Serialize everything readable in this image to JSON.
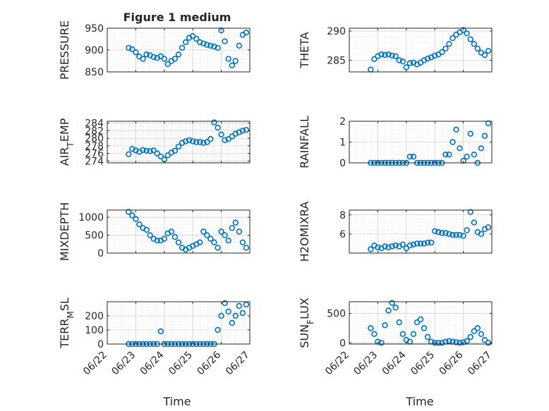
{
  "figure": {
    "title": "Figure 1 medium",
    "xlabel": "Time",
    "date_ticks": [
      "06/22",
      "06/23",
      "06/24",
      "06/25",
      "06/26",
      "06/27"
    ]
  },
  "colors": {
    "marker": "#0072BD",
    "axis": "#262626",
    "grid": "#d0d0d0",
    "background": "#ffffff"
  },
  "chart_data": [
    {
      "type": "scatter",
      "ylabel": "PRESSURE",
      "ylim": [
        850,
        950
      ],
      "yticks": [
        850,
        900,
        950
      ],
      "xlim": [
        "06/22",
        "06/27"
      ],
      "grid": true,
      "title": "Figure 1 medium",
      "x": [
        "06/22 18:00",
        "06/22 21:00",
        "06/23 00:00",
        "06/23 03:00",
        "06/23 06:00",
        "06/23 09:00",
        "06/23 12:00",
        "06/23 15:00",
        "06/23 18:00",
        "06/23 21:00",
        "06/24 00:00",
        "06/24 03:00",
        "06/24 06:00",
        "06/24 09:00",
        "06/24 12:00",
        "06/24 15:00",
        "06/24 18:00",
        "06/24 21:00",
        "06/25 00:00",
        "06/25 03:00",
        "06/25 06:00",
        "06/25 09:00",
        "06/25 12:00",
        "06/25 15:00",
        "06/25 18:00",
        "06/25 21:00",
        "06/26 00:00",
        "06/26 03:00",
        "06/26 06:00",
        "06/26 09:00",
        "06/26 12:00",
        "06/26 15:00",
        "06/26 18:00",
        "06/26 21:00"
      ],
      "y": [
        905,
        902,
        895,
        885,
        880,
        890,
        888,
        884,
        882,
        886,
        880,
        868,
        875,
        880,
        890,
        905,
        918,
        928,
        932,
        926,
        918,
        915,
        912,
        910,
        908,
        905,
        945,
        920,
        880,
        865,
        875,
        910,
        935,
        940
      ]
    },
    {
      "type": "scatter",
      "ylabel": "THETA",
      "ylim": [
        283,
        290.5
      ],
      "yticks": [
        285,
        290
      ],
      "xlim": [
        "06/22",
        "06/27"
      ],
      "grid": true,
      "x": [
        "06/22 18:00",
        "06/22 21:00",
        "06/23 00:00",
        "06/23 03:00",
        "06/23 06:00",
        "06/23 09:00",
        "06/23 12:00",
        "06/23 15:00",
        "06/23 18:00",
        "06/23 21:00",
        "06/24 00:00",
        "06/24 03:00",
        "06/24 06:00",
        "06/24 09:00",
        "06/24 12:00",
        "06/24 15:00",
        "06/24 18:00",
        "06/24 21:00",
        "06/25 00:00",
        "06/25 03:00",
        "06/25 06:00",
        "06/25 09:00",
        "06/25 12:00",
        "06/25 15:00",
        "06/25 18:00",
        "06/25 21:00",
        "06/26 00:00",
        "06/26 03:00",
        "06/26 06:00",
        "06/26 09:00",
        "06/26 12:00",
        "06/26 15:00",
        "06/26 18:00",
        "06/26 21:00"
      ],
      "y": [
        283.4,
        285.2,
        285.7,
        286.0,
        285.9,
        286.0,
        285.8,
        285.7,
        285.0,
        284.8,
        283.8,
        284.5,
        284.6,
        284.3,
        284.6,
        285.0,
        285.3,
        285.5,
        285.8,
        286.0,
        286.4,
        287.0,
        287.8,
        288.8,
        289.4,
        289.8,
        290.2,
        289.6,
        288.6,
        287.8,
        287.0,
        286.3,
        285.9,
        286.6
      ]
    },
    {
      "type": "scatter",
      "ylabel": "AIR_TEMP",
      "ylim": [
        273.5,
        284.5
      ],
      "yticks": [
        274,
        276,
        278,
        280,
        282,
        284
      ],
      "xlim": [
        "06/22",
        "06/27"
      ],
      "grid": true,
      "x": [
        "06/22 18:00",
        "06/22 21:00",
        "06/23 00:00",
        "06/23 03:00",
        "06/23 06:00",
        "06/23 09:00",
        "06/23 12:00",
        "06/23 15:00",
        "06/23 18:00",
        "06/23 21:00",
        "06/24 00:00",
        "06/24 03:00",
        "06/24 06:00",
        "06/24 09:00",
        "06/24 12:00",
        "06/24 15:00",
        "06/24 18:00",
        "06/24 21:00",
        "06/25 00:00",
        "06/25 03:00",
        "06/25 06:00",
        "06/25 09:00",
        "06/25 12:00",
        "06/25 15:00",
        "06/25 18:00",
        "06/25 21:00",
        "06/26 00:00",
        "06/26 03:00",
        "06/26 06:00",
        "06/26 09:00",
        "06/26 12:00",
        "06/26 15:00",
        "06/26 18:00",
        "06/26 21:00"
      ],
      "y": [
        275.8,
        277.2,
        276.8,
        276.4,
        276.9,
        276.7,
        276.6,
        276.8,
        276.0,
        275.2,
        274.4,
        275.5,
        276.2,
        276.7,
        277.8,
        278.8,
        279.2,
        279.5,
        279.2,
        279.0,
        279.0,
        278.8,
        279.0,
        279.8,
        284.2,
        282.8,
        281.0,
        279.5,
        279.8,
        280.5,
        281.2,
        281.6,
        282.0,
        282.2
      ]
    },
    {
      "type": "scatter",
      "ylabel": "RAINFALL",
      "ylim": [
        0,
        2
      ],
      "yticks": [
        0,
        1,
        2
      ],
      "xlim": [
        "06/22",
        "06/27"
      ],
      "grid": true,
      "x": [
        "06/22 18:00",
        "06/22 21:00",
        "06/23 00:00",
        "06/23 03:00",
        "06/23 06:00",
        "06/23 09:00",
        "06/23 12:00",
        "06/23 15:00",
        "06/23 18:00",
        "06/23 21:00",
        "06/24 00:00",
        "06/24 03:00",
        "06/24 06:00",
        "06/24 09:00",
        "06/24 12:00",
        "06/24 15:00",
        "06/24 18:00",
        "06/24 21:00",
        "06/25 00:00",
        "06/25 03:00",
        "06/25 06:00",
        "06/25 09:00",
        "06/25 12:00",
        "06/25 15:00",
        "06/25 18:00",
        "06/25 21:00",
        "06/26 00:00",
        "06/26 03:00",
        "06/26 06:00",
        "06/26 09:00",
        "06/26 12:00",
        "06/26 15:00",
        "06/26 18:00",
        "06/26 21:00"
      ],
      "y": [
        0,
        0,
        0,
        0,
        0,
        0,
        0,
        0,
        0,
        0,
        0,
        0.3,
        0.3,
        0,
        0,
        0,
        0,
        0,
        0,
        0,
        0,
        0.4,
        0.4,
        1.0,
        1.6,
        0.7,
        0.1,
        0.3,
        1.4,
        0.4,
        0,
        0.7,
        1.3,
        1.9
      ]
    },
    {
      "type": "scatter",
      "ylabel": "MIXDEPTH",
      "ylim": [
        0,
        1200
      ],
      "yticks": [
        0,
        500,
        1000
      ],
      "xlim": [
        "06/22",
        "06/27"
      ],
      "grid": true,
      "x": [
        "06/22 18:00",
        "06/22 21:00",
        "06/23 00:00",
        "06/23 03:00",
        "06/23 06:00",
        "06/23 09:00",
        "06/23 12:00",
        "06/23 15:00",
        "06/23 18:00",
        "06/23 21:00",
        "06/24 00:00",
        "06/24 03:00",
        "06/24 06:00",
        "06/24 09:00",
        "06/24 12:00",
        "06/24 15:00",
        "06/24 18:00",
        "06/24 21:00",
        "06/25 00:00",
        "06/25 03:00",
        "06/25 06:00",
        "06/25 09:00",
        "06/25 12:00",
        "06/25 15:00",
        "06/25 18:00",
        "06/25 21:00",
        "06/26 00:00",
        "06/26 03:00",
        "06/26 06:00",
        "06/26 09:00",
        "06/26 12:00",
        "06/26 15:00",
        "06/26 18:00",
        "06/26 21:00"
      ],
      "y": [
        1150,
        1050,
        950,
        800,
        700,
        650,
        500,
        400,
        350,
        350,
        400,
        550,
        600,
        450,
        300,
        150,
        100,
        150,
        200,
        250,
        300,
        600,
        500,
        400,
        300,
        150,
        600,
        500,
        350,
        700,
        850,
        600,
        300,
        150
      ]
    },
    {
      "type": "scatter",
      "ylabel": "H2OMIXRA",
      "ylim": [
        4,
        8.5
      ],
      "yticks": [
        6,
        8
      ],
      "xlim": [
        "06/22",
        "06/27"
      ],
      "grid": true,
      "x": [
        "06/22 18:00",
        "06/22 21:00",
        "06/23 00:00",
        "06/23 03:00",
        "06/23 06:00",
        "06/23 09:00",
        "06/23 12:00",
        "06/23 15:00",
        "06/23 18:00",
        "06/23 21:00",
        "06/24 00:00",
        "06/24 03:00",
        "06/24 06:00",
        "06/24 09:00",
        "06/24 12:00",
        "06/24 15:00",
        "06/24 18:00",
        "06/24 21:00",
        "06/25 00:00",
        "06/25 03:00",
        "06/25 06:00",
        "06/25 09:00",
        "06/25 12:00",
        "06/25 15:00",
        "06/25 18:00",
        "06/25 21:00",
        "06/26 00:00",
        "06/26 03:00",
        "06/26 06:00",
        "06/26 09:00",
        "06/26 12:00",
        "06/26 15:00",
        "06/26 18:00",
        "06/26 21:00"
      ],
      "y": [
        4.4,
        4.8,
        4.6,
        4.5,
        4.7,
        4.6,
        4.7,
        4.8,
        4.7,
        4.9,
        4.5,
        4.8,
        4.9,
        5.0,
        5.0,
        5.0,
        5.1,
        5.1,
        6.3,
        6.2,
        6.1,
        6.1,
        6.0,
        5.9,
        5.9,
        5.9,
        5.8,
        6.4,
        8.3,
        7.2,
        6.2,
        6.0,
        6.5,
        6.7
      ]
    },
    {
      "type": "scatter",
      "ylabel": "TERR_MSL",
      "ylim": [
        0,
        300
      ],
      "yticks": [
        0,
        100,
        200
      ],
      "xlim": [
        "06/22",
        "06/27"
      ],
      "grid": true,
      "x": [
        "06/22 18:00",
        "06/22 21:00",
        "06/23 00:00",
        "06/23 03:00",
        "06/23 06:00",
        "06/23 09:00",
        "06/23 12:00",
        "06/23 15:00",
        "06/23 18:00",
        "06/23 21:00",
        "06/24 00:00",
        "06/24 03:00",
        "06/24 06:00",
        "06/24 09:00",
        "06/24 12:00",
        "06/24 15:00",
        "06/24 18:00",
        "06/24 21:00",
        "06/25 00:00",
        "06/25 03:00",
        "06/25 06:00",
        "06/25 09:00",
        "06/25 12:00",
        "06/25 15:00",
        "06/25 18:00",
        "06/25 21:00",
        "06/26 00:00",
        "06/26 03:00",
        "06/26 06:00",
        "06/26 09:00",
        "06/26 12:00",
        "06/26 15:00",
        "06/26 18:00",
        "06/26 21:00"
      ],
      "y": [
        0,
        0,
        0,
        0,
        0,
        0,
        0,
        0,
        0,
        90,
        0,
        0,
        0,
        0,
        0,
        0,
        0,
        0,
        0,
        0,
        0,
        0,
        0,
        0,
        0,
        100,
        200,
        290,
        230,
        150,
        200,
        270,
        220,
        280
      ]
    },
    {
      "type": "scatter",
      "ylabel": "SUN_FLUX",
      "ylim": [
        -20,
        700
      ],
      "yticks": [
        0,
        500
      ],
      "xlim": [
        "06/22",
        "06/27"
      ],
      "grid": true,
      "x": [
        "06/22 18:00",
        "06/22 21:00",
        "06/23 00:00",
        "06/23 03:00",
        "06/23 06:00",
        "06/23 09:00",
        "06/23 12:00",
        "06/23 15:00",
        "06/23 18:00",
        "06/23 21:00",
        "06/24 00:00",
        "06/24 03:00",
        "06/24 06:00",
        "06/24 09:00",
        "06/24 12:00",
        "06/24 15:00",
        "06/24 18:00",
        "06/24 21:00",
        "06/25 00:00",
        "06/25 03:00",
        "06/25 06:00",
        "06/25 09:00",
        "06/25 12:00",
        "06/25 15:00",
        "06/25 18:00",
        "06/25 21:00",
        "06/26 00:00",
        "06/26 03:00",
        "06/26 06:00",
        "06/26 09:00",
        "06/26 12:00",
        "06/26 15:00",
        "06/26 18:00",
        "06/26 21:00"
      ],
      "y": [
        250,
        150,
        20,
        0,
        300,
        550,
        680,
        600,
        350,
        150,
        50,
        20,
        150,
        350,
        400,
        250,
        100,
        20,
        0,
        0,
        0,
        20,
        30,
        20,
        10,
        0,
        10,
        30,
        100,
        200,
        250,
        150,
        50,
        0
      ]
    }
  ]
}
